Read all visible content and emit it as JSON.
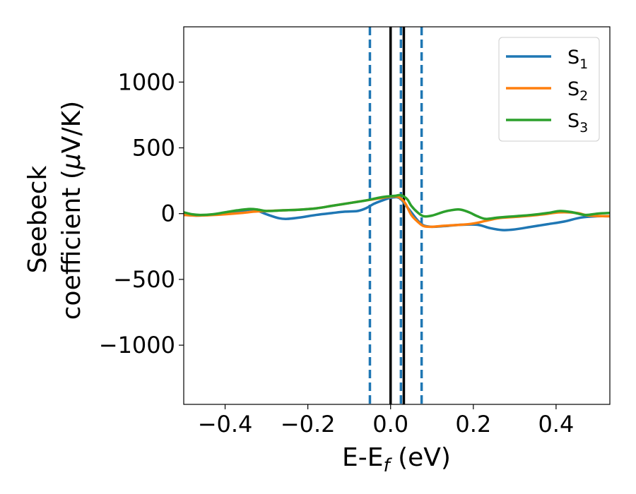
{
  "chart_data": {
    "type": "line",
    "xlabel": {
      "main": "E-E",
      "sub": "f",
      "rest": " (eV)"
    },
    "ylabel": {
      "line1": "Seebeck",
      "line2_pre": "coefficient  (",
      "line2_mu": "μ",
      "line2_post": "V/K)"
    },
    "xlim": [
      -0.5,
      0.53
    ],
    "ylim": [
      -1450,
      1420
    ],
    "xticks": [
      {
        "value": -0.4,
        "label": "−0.4"
      },
      {
        "value": -0.2,
        "label": "−0.2"
      },
      {
        "value": 0.0,
        "label": "0.0"
      },
      {
        "value": 0.2,
        "label": "0.2"
      },
      {
        "value": 0.4,
        "label": "0.4"
      }
    ],
    "yticks": [
      {
        "value": 1000,
        "label": "1000"
      },
      {
        "value": 500,
        "label": "500"
      },
      {
        "value": 0,
        "label": "0"
      },
      {
        "value": -500,
        "label": "−500"
      },
      {
        "value": -1000,
        "label": "−1000"
      }
    ],
    "grid": false,
    "legend_position": "top-right",
    "series": [
      {
        "name": "S",
        "sub": "1",
        "color": "#1f77b4",
        "points": [
          [
            -0.5,
            -10
          ],
          [
            -0.47,
            -15
          ],
          [
            -0.44,
            -10
          ],
          [
            -0.4,
            5
          ],
          [
            -0.36,
            20
          ],
          [
            -0.34,
            30
          ],
          [
            -0.32,
            20
          ],
          [
            -0.3,
            -5
          ],
          [
            -0.27,
            -35
          ],
          [
            -0.25,
            -40
          ],
          [
            -0.22,
            -30
          ],
          [
            -0.18,
            -10
          ],
          [
            -0.14,
            5
          ],
          [
            -0.11,
            15
          ],
          [
            -0.08,
            20
          ],
          [
            -0.06,
            40
          ],
          [
            -0.04,
            75
          ],
          [
            -0.02,
            100
          ],
          [
            0.0,
            120
          ],
          [
            0.015,
            125
          ],
          [
            0.025,
            110
          ],
          [
            0.035,
            70
          ],
          [
            0.05,
            10
          ],
          [
            0.065,
            -50
          ],
          [
            0.08,
            -90
          ],
          [
            0.1,
            -100
          ],
          [
            0.13,
            -95
          ],
          [
            0.17,
            -85
          ],
          [
            0.21,
            -85
          ],
          [
            0.24,
            -110
          ],
          [
            0.27,
            -125
          ],
          [
            0.3,
            -120
          ],
          [
            0.34,
            -100
          ],
          [
            0.38,
            -80
          ],
          [
            0.42,
            -60
          ],
          [
            0.46,
            -30
          ],
          [
            0.5,
            -20
          ],
          [
            0.53,
            -20
          ]
        ]
      },
      {
        "name": "S",
        "sub": "2",
        "color": "#ff7f0e",
        "points": [
          [
            -0.5,
            -10
          ],
          [
            -0.47,
            -15
          ],
          [
            -0.44,
            -12
          ],
          [
            -0.4,
            -5
          ],
          [
            -0.36,
            5
          ],
          [
            -0.33,
            15
          ],
          [
            -0.3,
            20
          ],
          [
            -0.26,
            25
          ],
          [
            -0.22,
            30
          ],
          [
            -0.18,
            40
          ],
          [
            -0.14,
            60
          ],
          [
            -0.1,
            80
          ],
          [
            -0.06,
            100
          ],
          [
            -0.03,
            115
          ],
          [
            -0.01,
            125
          ],
          [
            0.005,
            130
          ],
          [
            0.02,
            125
          ],
          [
            0.035,
            80
          ],
          [
            0.05,
            -10
          ],
          [
            0.065,
            -60
          ],
          [
            0.08,
            -95
          ],
          [
            0.1,
            -100
          ],
          [
            0.13,
            -92
          ],
          [
            0.17,
            -85
          ],
          [
            0.2,
            -75
          ],
          [
            0.23,
            -55
          ],
          [
            0.26,
            -35
          ],
          [
            0.3,
            -25
          ],
          [
            0.34,
            -15
          ],
          [
            0.37,
            -5
          ],
          [
            0.41,
            10
          ],
          [
            0.45,
            5
          ],
          [
            0.48,
            -15
          ],
          [
            0.53,
            -20
          ]
        ]
      },
      {
        "name": "S",
        "sub": "3",
        "color": "#2ca02c",
        "points": [
          [
            -0.5,
            10
          ],
          [
            -0.48,
            -5
          ],
          [
            -0.46,
            -10
          ],
          [
            -0.43,
            -5
          ],
          [
            -0.4,
            10
          ],
          [
            -0.37,
            25
          ],
          [
            -0.34,
            35
          ],
          [
            -0.32,
            30
          ],
          [
            -0.3,
            20
          ],
          [
            -0.26,
            25
          ],
          [
            -0.22,
            30
          ],
          [
            -0.18,
            40
          ],
          [
            -0.14,
            60
          ],
          [
            -0.1,
            80
          ],
          [
            -0.06,
            100
          ],
          [
            -0.03,
            120
          ],
          [
            -0.01,
            130
          ],
          [
            0.01,
            135
          ],
          [
            0.025,
            140
          ],
          [
            0.04,
            110
          ],
          [
            0.05,
            60
          ],
          [
            0.065,
            10
          ],
          [
            0.08,
            -20
          ],
          [
            0.1,
            -15
          ],
          [
            0.13,
            15
          ],
          [
            0.155,
            30
          ],
          [
            0.17,
            30
          ],
          [
            0.19,
            10
          ],
          [
            0.21,
            -20
          ],
          [
            0.23,
            -40
          ],
          [
            0.26,
            -30
          ],
          [
            0.3,
            -20
          ],
          [
            0.34,
            -10
          ],
          [
            0.38,
            5
          ],
          [
            0.41,
            20
          ],
          [
            0.44,
            10
          ],
          [
            0.47,
            -10
          ],
          [
            0.5,
            0
          ],
          [
            0.53,
            5
          ]
        ]
      }
    ],
    "vlines": [
      {
        "x": -0.05,
        "color": "#1f77b4",
        "style": "dashed"
      },
      {
        "x": 0.0,
        "color": "#000000",
        "style": "solid"
      },
      {
        "x": 0.025,
        "color": "#1f77b4",
        "style": "dashed"
      },
      {
        "x": 0.032,
        "color": "#000000",
        "style": "solid"
      },
      {
        "x": 0.075,
        "color": "#1f77b4",
        "style": "dashed"
      }
    ]
  }
}
